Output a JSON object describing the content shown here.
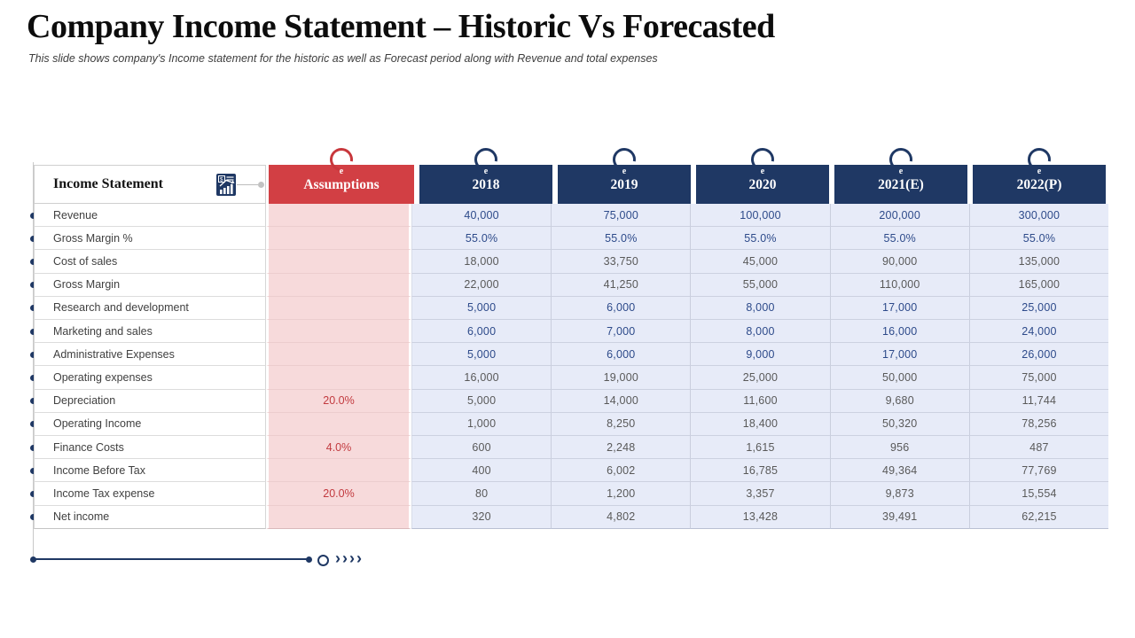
{
  "title": "Company Income Statement – Historic Vs Forecasted",
  "subtitle": "This slide shows company's Income statement for the historic as well as Forecast period along with Revenue and total expenses",
  "icons": {
    "header_icon": "financial-report-icon",
    "ring_glyph": "e"
  },
  "footer": {
    "chevrons": "››››"
  },
  "colors": {
    "navy": "#1f3864",
    "red": "#d23f44",
    "assumption_cell": "#f7dadb",
    "year_cell": "#e7ebf8",
    "input_value_text": "#2d4a8a",
    "calc_value_text": "#595959",
    "assumption_value_text": "#c23a3f"
  },
  "table": {
    "label_header": "Income Statement",
    "assumptions_header": "Assumptions",
    "year_headers": [
      "2018",
      "2019",
      "2020",
      "2021(E)",
      "2022(P)"
    ],
    "rows": [
      {
        "label": "Revenue",
        "assumption": "",
        "emphasis": "input",
        "values": [
          "40,000",
          "75,000",
          "100,000",
          "200,000",
          "300,000"
        ]
      },
      {
        "label": "Gross Margin %",
        "assumption": "",
        "emphasis": "input",
        "values": [
          "55.0%",
          "55.0%",
          "55.0%",
          "55.0%",
          "55.0%"
        ]
      },
      {
        "label": "Cost of sales",
        "assumption": "",
        "emphasis": "calc",
        "values": [
          "18,000",
          "33,750",
          "45,000",
          "90,000",
          "135,000"
        ]
      },
      {
        "label": "Gross Margin",
        "assumption": "",
        "emphasis": "calc",
        "values": [
          "22,000",
          "41,250",
          "55,000",
          "110,000",
          "165,000"
        ]
      },
      {
        "label": "Research and development",
        "assumption": "",
        "emphasis": "input",
        "values": [
          "5,000",
          "6,000",
          "8,000",
          "17,000",
          "25,000"
        ]
      },
      {
        "label": "Marketing and sales",
        "assumption": "",
        "emphasis": "input",
        "values": [
          "6,000",
          "7,000",
          "8,000",
          "16,000",
          "24,000"
        ]
      },
      {
        "label": "Administrative Expenses",
        "assumption": "",
        "emphasis": "input",
        "values": [
          "5,000",
          "6,000",
          "9,000",
          "17,000",
          "26,000"
        ]
      },
      {
        "label": "Operating expenses",
        "assumption": "",
        "emphasis": "calc",
        "values": [
          "16,000",
          "19,000",
          "25,000",
          "50,000",
          "75,000"
        ]
      },
      {
        "label": "Depreciation",
        "assumption": "20.0%",
        "emphasis": "calc",
        "values": [
          "5,000",
          "14,000",
          "11,600",
          "9,680",
          "11,744"
        ]
      },
      {
        "label": "Operating Income",
        "assumption": "",
        "emphasis": "calc",
        "values": [
          "1,000",
          "8,250",
          "18,400",
          "50,320",
          "78,256"
        ]
      },
      {
        "label": "Finance Costs",
        "assumption": "4.0%",
        "emphasis": "calc",
        "values": [
          "600",
          "2,248",
          "1,615",
          "956",
          "487"
        ]
      },
      {
        "label": "Income Before Tax",
        "assumption": "",
        "emphasis": "calc",
        "values": [
          "400",
          "6,002",
          "16,785",
          "49,364",
          "77,769"
        ]
      },
      {
        "label": "Income Tax expense",
        "assumption": "20.0%",
        "emphasis": "calc",
        "values": [
          "80",
          "1,200",
          "3,357",
          "9,873",
          "15,554"
        ]
      },
      {
        "label": "Net income",
        "assumption": "",
        "emphasis": "calc",
        "values": [
          "320",
          "4,802",
          "13,428",
          "39,491",
          "62,215"
        ]
      }
    ]
  }
}
